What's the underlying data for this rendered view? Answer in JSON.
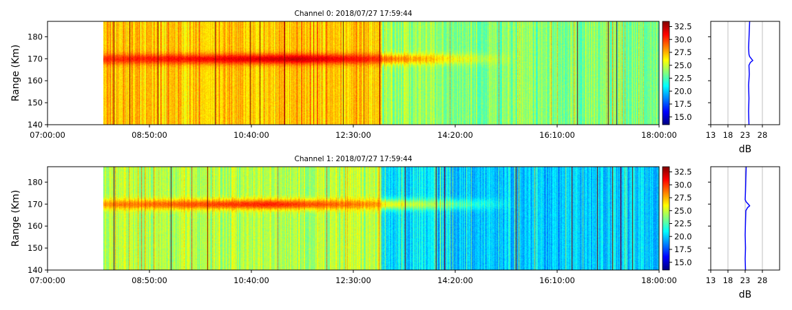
{
  "colormap": "jet",
  "colors": {
    "frame": "#000000",
    "profile_line": "#0000ff",
    "grid": "#b0b0b0"
  },
  "chart_data": [
    {
      "type": "heatmap",
      "title": "Channel 0: 2018/07/27 17:59:44",
      "ylabel": "Range (Km)",
      "xlabel": "",
      "x_ticks": [
        "07:00:00",
        "08:50:00",
        "10:40:00",
        "12:30:00",
        "14:20:00",
        "16:10:00",
        "18:00:00"
      ],
      "y_ticks": [
        140,
        150,
        160,
        170,
        180
      ],
      "xlim": [
        "07:00:00",
        "18:00:00"
      ],
      "ylim": [
        140,
        187
      ],
      "data_start": "08:00:00",
      "baseline_db": 27.0,
      "echo": {
        "range_km": 170,
        "start": "08:00:00",
        "peak": "11:30:00",
        "end": "15:30:00",
        "peak_db": 32.0
      },
      "colorbar": {
        "min": 13.5,
        "max": 33.5,
        "ticks": [
          15.0,
          17.5,
          20.0,
          22.5,
          25.0,
          27.5,
          30.0,
          32.5
        ]
      },
      "profile": {
        "xlabel": "dB",
        "xlim": [
          13,
          33
        ],
        "x_ticks": [
          13,
          18,
          23,
          28
        ],
        "grid": true,
        "points": [
          [
            24.3,
            187
          ],
          [
            24.2,
            183
          ],
          [
            24.1,
            179
          ],
          [
            24.0,
            175
          ],
          [
            24.1,
            172
          ],
          [
            24.3,
            171
          ],
          [
            24.8,
            170
          ],
          [
            25.2,
            169.2
          ],
          [
            24.5,
            168.3
          ],
          [
            24.1,
            167
          ],
          [
            24.2,
            163
          ],
          [
            24.0,
            158
          ],
          [
            24.1,
            152
          ],
          [
            24.0,
            146
          ],
          [
            24.1,
            140
          ]
        ]
      }
    },
    {
      "type": "heatmap",
      "title": "Channel 1: 2018/07/27 17:59:44",
      "ylabel": "Range (Km)",
      "xlabel": "",
      "x_ticks": [
        "07:00:00",
        "08:50:00",
        "10:40:00",
        "12:30:00",
        "14:20:00",
        "16:10:00",
        "18:00:00"
      ],
      "y_ticks": [
        140,
        150,
        160,
        170,
        180
      ],
      "xlim": [
        "07:00:00",
        "18:00:00"
      ],
      "ylim": [
        140,
        187
      ],
      "data_start": "08:00:00",
      "baseline_db": 24.5,
      "echo": {
        "range_km": 170,
        "start": "08:00:00",
        "peak": "11:00:00",
        "end": "15:30:00",
        "peak_db": 30.5
      },
      "colorbar": {
        "min": 13.5,
        "max": 33.5,
        "ticks": [
          15.0,
          17.5,
          20.0,
          22.5,
          25.0,
          27.5,
          30.0,
          32.5
        ]
      },
      "profile": {
        "xlabel": "dB",
        "xlim": [
          13,
          33
        ],
        "x_ticks": [
          13,
          18,
          23,
          28
        ],
        "grid": true,
        "points": [
          [
            23.3,
            187
          ],
          [
            23.2,
            182
          ],
          [
            23.1,
            176
          ],
          [
            23.0,
            172
          ],
          [
            23.3,
            171
          ],
          [
            23.9,
            170
          ],
          [
            24.3,
            169.2
          ],
          [
            23.7,
            168.4
          ],
          [
            23.2,
            167
          ],
          [
            23.1,
            162
          ],
          [
            23.0,
            156
          ],
          [
            23.1,
            150
          ],
          [
            23.0,
            145
          ],
          [
            23.1,
            140
          ]
        ]
      }
    }
  ]
}
